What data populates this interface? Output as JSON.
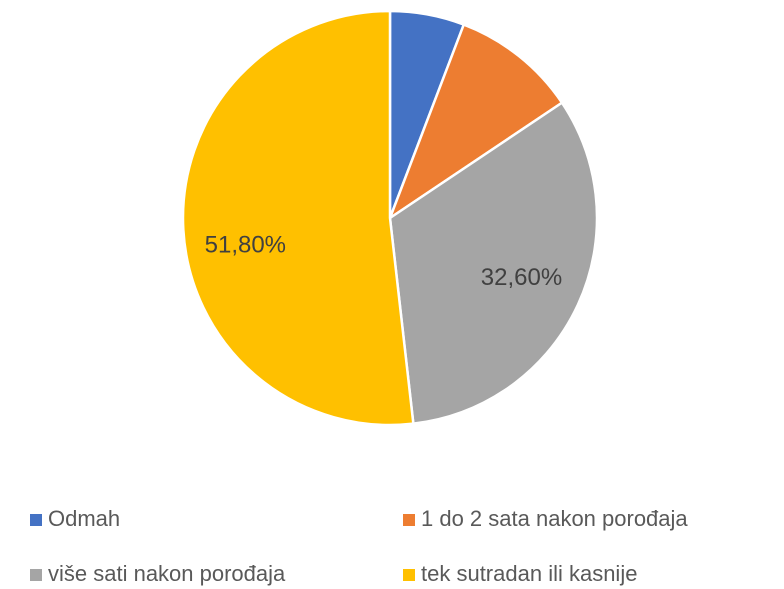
{
  "chart_data": {
    "type": "pie",
    "categories": [
      "Odmah",
      "1 do 2 sata nakon porođaja",
      "više sati nakon porođaja",
      "tek sutradan ili kasnije"
    ],
    "values": [
      5.8,
      9.8,
      32.6,
      51.8
    ],
    "value_labels": [
      null,
      null,
      "32,60%",
      "51,80%"
    ],
    "colors": [
      "#4472c4",
      "#ed7d31",
      "#a5a5a5",
      "#ffc000"
    ],
    "legend": "bottom"
  }
}
